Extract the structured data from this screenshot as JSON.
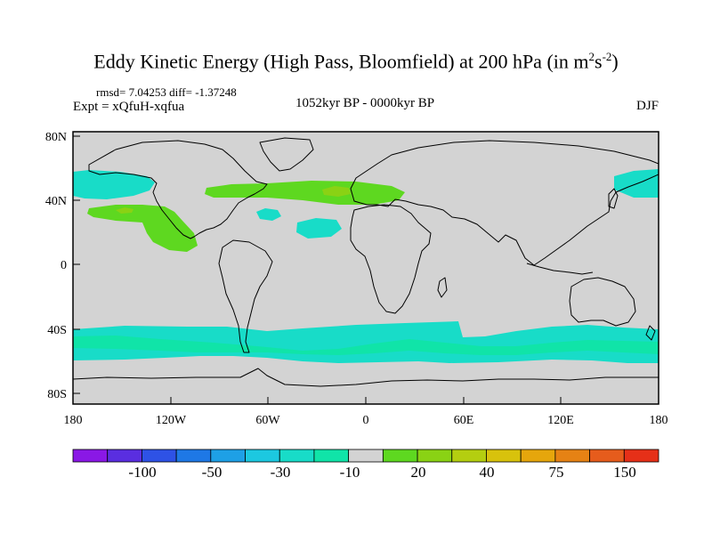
{
  "title": {
    "main": "Eddy Kinetic Energy (High Pass, Bloomfield) at 200 hPa (in m",
    "sup1": "2",
    "mid": "s",
    "sup2": "-2",
    "tail": ")"
  },
  "stats": "rmsd= 7.04253 diff= -1.37248",
  "experiment": "Expt = xQfuH-xqfua",
  "period": "1052kyr BP - 0000kyr BP",
  "season": "DJF",
  "map": {
    "lat_ticks": [
      "80N",
      "40N",
      "0",
      "40S",
      "80S"
    ],
    "lon_ticks": [
      "180",
      "120W",
      "60W",
      "0",
      "60E",
      "120E",
      "180"
    ],
    "land_color": "#ffffff",
    "background_color": "#d3d3d3"
  },
  "colorbar": {
    "colors": [
      "#8a18e6",
      "#5a2ee0",
      "#2e52e6",
      "#1e78e6",
      "#1ea0e6",
      "#1cc8e0",
      "#18dcc8",
      "#10e4a8",
      "#d3d3d3",
      "#5ed820",
      "#8ad214",
      "#b4ce10",
      "#d8c20c",
      "#e6a60c",
      "#e68214",
      "#e65c1c",
      "#e63018"
    ],
    "labels": [
      "-100",
      "-50",
      "-30",
      "-10",
      "20",
      "40",
      "75",
      "150"
    ]
  }
}
